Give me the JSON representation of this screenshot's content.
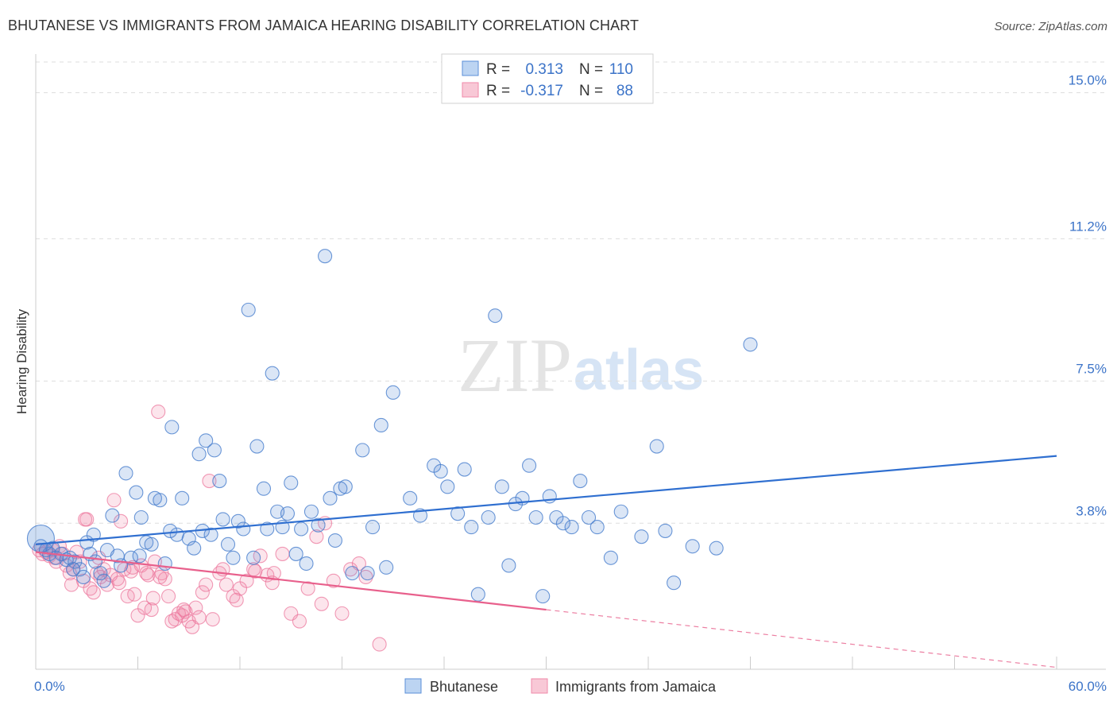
{
  "title": "BHUTANESE VS IMMIGRANTS FROM JAMAICA HEARING DISABILITY CORRELATION CHART",
  "source": "Source: ZipAtlas.com",
  "watermark": {
    "zip": "ZIP",
    "atlas": "atlas"
  },
  "legend": {
    "rows": [
      {
        "r_label": "R =",
        "r_value": "0.313",
        "n_label": "N =",
        "n_value": "110"
      },
      {
        "r_label": "R =",
        "r_value": "-0.317",
        "n_label": "N =",
        "n_value": "88"
      }
    ]
  },
  "bottom_legend": {
    "series1": "Bhutanese",
    "series2": "Immigrants from Jamaica"
  },
  "colors": {
    "blue": "#5b8fd8",
    "blue_line": "#2f6fd0",
    "pink": "#f08aaa",
    "pink_line": "#e8608c",
    "tick": "#3b73c8"
  },
  "chart_data": {
    "type": "scatter",
    "title": "BHUTANESE VS IMMIGRANTS FROM JAMAICA HEARING DISABILITY CORRELATION CHART",
    "xlabel": "",
    "ylabel": "Hearing Disability",
    "xlim": [
      0,
      60
    ],
    "ylim": [
      0,
      15.8
    ],
    "x_tick_labels": [
      "0.0%",
      "60.0%"
    ],
    "y_ticks": [
      3.8,
      7.5,
      11.2,
      15.0
    ],
    "y_tick_labels": [
      "3.8%",
      "7.5%",
      "11.2%",
      "15.0%"
    ],
    "grid": "horizontal dashed",
    "legend_placement": "top-center",
    "series": [
      {
        "name": "Bhutanese",
        "color": "#5b8fd8",
        "trend": {
          "x": [
            0,
            60
          ],
          "y": [
            3.25,
            5.55
          ]
        },
        "points": [
          [
            0.3,
            3.2
          ],
          [
            0.6,
            3.1
          ],
          [
            0.8,
            3.0
          ],
          [
            1.0,
            3.15
          ],
          [
            1.2,
            2.9
          ],
          [
            1.5,
            3.0
          ],
          [
            1.8,
            2.85
          ],
          [
            2.0,
            2.9
          ],
          [
            2.3,
            2.8
          ],
          [
            2.6,
            2.6
          ],
          [
            2.8,
            2.4
          ],
          [
            3.0,
            3.3
          ],
          [
            3.2,
            3.0
          ],
          [
            3.5,
            2.8
          ],
          [
            3.8,
            2.5
          ],
          [
            4.0,
            2.3
          ],
          [
            4.2,
            3.1
          ],
          [
            4.5,
            4.0
          ],
          [
            4.8,
            2.95
          ],
          [
            5.0,
            2.7
          ],
          [
            5.3,
            5.1
          ],
          [
            5.6,
            2.9
          ],
          [
            5.9,
            4.6
          ],
          [
            6.2,
            3.95
          ],
          [
            6.5,
            3.3
          ],
          [
            6.8,
            3.25
          ],
          [
            7.0,
            4.45
          ],
          [
            7.3,
            4.4
          ],
          [
            7.6,
            2.75
          ],
          [
            8.0,
            6.3
          ],
          [
            8.3,
            3.5
          ],
          [
            8.6,
            4.45
          ],
          [
            9.0,
            3.4
          ],
          [
            9.3,
            3.15
          ],
          [
            9.6,
            5.6
          ],
          [
            9.8,
            3.6
          ],
          [
            10.0,
            5.95
          ],
          [
            10.3,
            3.5
          ],
          [
            10.5,
            5.7
          ],
          [
            10.8,
            4.9
          ],
          [
            11.0,
            3.9
          ],
          [
            11.3,
            3.25
          ],
          [
            11.6,
            2.9
          ],
          [
            11.9,
            3.85
          ],
          [
            12.2,
            3.65
          ],
          [
            12.5,
            9.35
          ],
          [
            12.8,
            2.9
          ],
          [
            13.0,
            5.8
          ],
          [
            13.4,
            4.7
          ],
          [
            13.6,
            3.65
          ],
          [
            13.9,
            7.7
          ],
          [
            14.2,
            4.1
          ],
          [
            14.5,
            3.7
          ],
          [
            14.8,
            4.05
          ],
          [
            15.0,
            4.85
          ],
          [
            15.3,
            3.0
          ],
          [
            15.6,
            3.65
          ],
          [
            15.9,
            2.75
          ],
          [
            16.2,
            4.1
          ],
          [
            16.6,
            3.75
          ],
          [
            17.0,
            10.75
          ],
          [
            17.3,
            4.45
          ],
          [
            17.6,
            3.35
          ],
          [
            17.9,
            4.7
          ],
          [
            18.2,
            4.75
          ],
          [
            18.6,
            2.5
          ],
          [
            19.2,
            5.7
          ],
          [
            19.5,
            2.5
          ],
          [
            19.8,
            3.7
          ],
          [
            20.3,
            6.35
          ],
          [
            20.6,
            2.65
          ],
          [
            21.0,
            7.2
          ],
          [
            22.0,
            4.45
          ],
          [
            22.6,
            4.0
          ],
          [
            23.4,
            5.3
          ],
          [
            23.8,
            5.15
          ],
          [
            24.2,
            4.75
          ],
          [
            24.8,
            4.05
          ],
          [
            25.2,
            5.2
          ],
          [
            25.6,
            3.7
          ],
          [
            26.0,
            1.95
          ],
          [
            26.6,
            3.95
          ],
          [
            27.0,
            9.2
          ],
          [
            27.4,
            4.75
          ],
          [
            27.8,
            2.7
          ],
          [
            28.2,
            4.3
          ],
          [
            28.6,
            4.45
          ],
          [
            29.0,
            5.3
          ],
          [
            29.4,
            3.95
          ],
          [
            29.8,
            1.9
          ],
          [
            30.2,
            4.5
          ],
          [
            30.6,
            3.95
          ],
          [
            31.0,
            3.8
          ],
          [
            31.5,
            3.7
          ],
          [
            32.0,
            4.9
          ],
          [
            32.5,
            3.95
          ],
          [
            33.0,
            3.7
          ],
          [
            36.5,
            5.8
          ],
          [
            37.0,
            3.6
          ],
          [
            37.5,
            2.25
          ],
          [
            42.0,
            8.45
          ],
          [
            40.0,
            3.15
          ],
          [
            38.6,
            3.2
          ],
          [
            35.6,
            3.45
          ],
          [
            33.8,
            2.9
          ],
          [
            34.4,
            4.1
          ],
          [
            2.2,
            2.6
          ],
          [
            3.4,
            3.5
          ],
          [
            6.1,
            2.95
          ],
          [
            7.9,
            3.6
          ]
        ]
      },
      {
        "name": "Immigrants from Jamaica",
        "color": "#f08aaa",
        "trend": {
          "x": [
            0,
            30
          ],
          "y": [
            3.05,
            1.55
          ]
        },
        "trend_dashed": {
          "x": [
            30,
            60
          ],
          "y": [
            1.55,
            0.05
          ]
        },
        "points": [
          [
            0.2,
            3.1
          ],
          [
            0.4,
            3.0
          ],
          [
            0.6,
            3.05
          ],
          [
            0.8,
            2.95
          ],
          [
            1.0,
            3.1
          ],
          [
            1.2,
            2.8
          ],
          [
            1.4,
            3.2
          ],
          [
            1.6,
            3.0
          ],
          [
            1.8,
            2.7
          ],
          [
            2.0,
            2.5
          ],
          [
            2.2,
            2.6
          ],
          [
            2.4,
            3.05
          ],
          [
            2.6,
            2.8
          ],
          [
            2.8,
            2.3
          ],
          [
            3.0,
            3.9
          ],
          [
            3.2,
            2.1
          ],
          [
            3.4,
            2.0
          ],
          [
            3.6,
            2.5
          ],
          [
            3.8,
            2.4
          ],
          [
            4.0,
            2.6
          ],
          [
            4.2,
            2.2
          ],
          [
            4.4,
            2.45
          ],
          [
            4.6,
            4.4
          ],
          [
            4.8,
            2.35
          ],
          [
            5.0,
            3.85
          ],
          [
            5.2,
            2.6
          ],
          [
            5.4,
            1.9
          ],
          [
            5.6,
            2.55
          ],
          [
            5.8,
            1.95
          ],
          [
            6.0,
            1.4
          ],
          [
            6.2,
            2.7
          ],
          [
            6.4,
            1.6
          ],
          [
            6.6,
            2.45
          ],
          [
            6.8,
            1.55
          ],
          [
            7.0,
            2.8
          ],
          [
            7.2,
            6.7
          ],
          [
            7.4,
            2.5
          ],
          [
            7.6,
            2.35
          ],
          [
            7.8,
            1.9
          ],
          [
            8.0,
            1.25
          ],
          [
            8.2,
            1.3
          ],
          [
            8.4,
            1.45
          ],
          [
            8.6,
            1.4
          ],
          [
            8.8,
            1.5
          ],
          [
            9.0,
            1.25
          ],
          [
            9.2,
            1.1
          ],
          [
            9.4,
            1.6
          ],
          [
            9.6,
            1.35
          ],
          [
            9.8,
            2.0
          ],
          [
            10.0,
            2.2
          ],
          [
            10.4,
            1.3
          ],
          [
            10.8,
            2.5
          ],
          [
            11.2,
            2.2
          ],
          [
            11.6,
            1.9
          ],
          [
            12.0,
            2.1
          ],
          [
            12.4,
            2.3
          ],
          [
            12.8,
            2.6
          ],
          [
            13.2,
            2.95
          ],
          [
            13.6,
            2.45
          ],
          [
            14.0,
            2.5
          ],
          [
            14.5,
            3.0
          ],
          [
            15.0,
            1.45
          ],
          [
            15.5,
            1.25
          ],
          [
            16.0,
            2.1
          ],
          [
            16.5,
            3.45
          ],
          [
            17.0,
            3.8
          ],
          [
            17.5,
            2.3
          ],
          [
            18.0,
            1.45
          ],
          [
            18.5,
            2.6
          ],
          [
            19.0,
            2.75
          ],
          [
            6.9,
            1.85
          ],
          [
            2.9,
            3.9
          ],
          [
            1.1,
            2.9
          ],
          [
            2.1,
            2.2
          ],
          [
            3.7,
            2.9
          ],
          [
            4.9,
            2.25
          ],
          [
            5.7,
            2.65
          ],
          [
            6.5,
            2.5
          ],
          [
            7.3,
            2.4
          ],
          [
            8.7,
            1.55
          ],
          [
            11.0,
            2.6
          ],
          [
            12.9,
            2.55
          ],
          [
            16.8,
            1.7
          ],
          [
            19.4,
            2.4
          ],
          [
            20.2,
            0.65
          ],
          [
            10.2,
            4.9
          ],
          [
            11.8,
            1.8
          ],
          [
            13.9,
            2.25
          ]
        ]
      }
    ]
  }
}
